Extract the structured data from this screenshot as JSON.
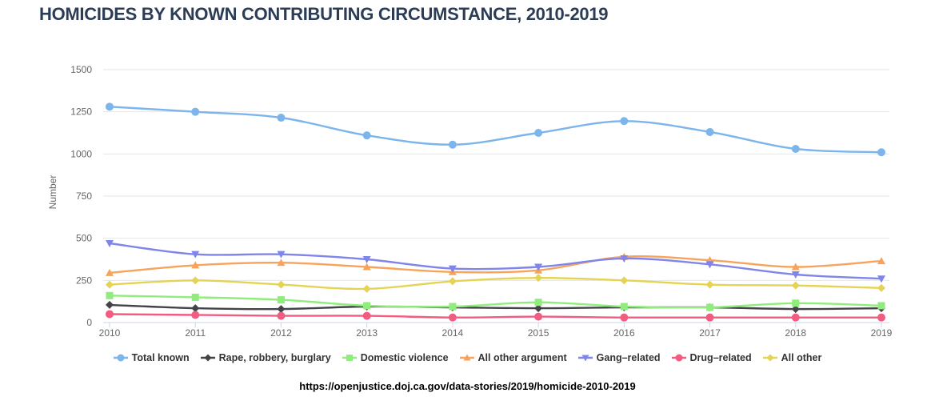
{
  "title": "HOMICIDES BY KNOWN CONTRIBUTING CIRCUMSTANCE, 2010-2019",
  "source_url": "https://openjustice.doj.ca.gov/data-stories/2019/homicide-2010-2019",
  "colors": {
    "title": "#2c3c54",
    "axis_line": "#ccd6eb",
    "grid_line": "#e6e6e6",
    "axis_text": "#666666",
    "legend_text": "#333333",
    "url_text": "#000000",
    "background": "#ffffff"
  },
  "chart_data": {
    "type": "line",
    "title": "HOMICIDES BY KNOWN CONTRIBUTING CIRCUMSTANCE, 2010-2019",
    "xlabel": "",
    "ylabel": "Number",
    "x": [
      "2010",
      "2011",
      "2012",
      "2013",
      "2014",
      "2015",
      "2016",
      "2017",
      "2018",
      "2019"
    ],
    "yticks": [
      "0",
      "250",
      "500",
      "750",
      "1000",
      "1250",
      "1500"
    ],
    "ylim": [
      0,
      1500
    ],
    "grid": true,
    "legend_position": "bottom",
    "series": [
      {
        "name": "Total known",
        "color": "#7cb5ec",
        "marker": "circle",
        "values": [
          1280,
          1250,
          1215,
          1110,
          1055,
          1125,
          1195,
          1130,
          1030,
          1010
        ]
      },
      {
        "name": "Rape, robbery, burglary",
        "color": "#434348",
        "marker": "diamond",
        "values": [
          105,
          85,
          80,
          95,
          90,
          85,
          90,
          90,
          80,
          85
        ]
      },
      {
        "name": "Domestic violence",
        "color": "#90ed7d",
        "marker": "square",
        "values": [
          160,
          150,
          135,
          100,
          95,
          120,
          95,
          90,
          115,
          100
        ]
      },
      {
        "name": "All other argument",
        "color": "#f7a35c",
        "marker": "triangle",
        "values": [
          295,
          340,
          355,
          330,
          300,
          310,
          390,
          370,
          330,
          365
        ]
      },
      {
        "name": "Gang–related",
        "color": "#8085e9",
        "marker": "triangle-down",
        "values": [
          470,
          405,
          405,
          375,
          320,
          330,
          380,
          345,
          285,
          260
        ]
      },
      {
        "name": "Drug–related",
        "color": "#f15c80",
        "marker": "circle",
        "values": [
          50,
          45,
          40,
          40,
          30,
          35,
          30,
          30,
          30,
          30
        ]
      },
      {
        "name": "All other",
        "color": "#e4d354",
        "marker": "diamond",
        "values": [
          225,
          250,
          225,
          200,
          245,
          265,
          250,
          225,
          220,
          205
        ]
      }
    ]
  }
}
